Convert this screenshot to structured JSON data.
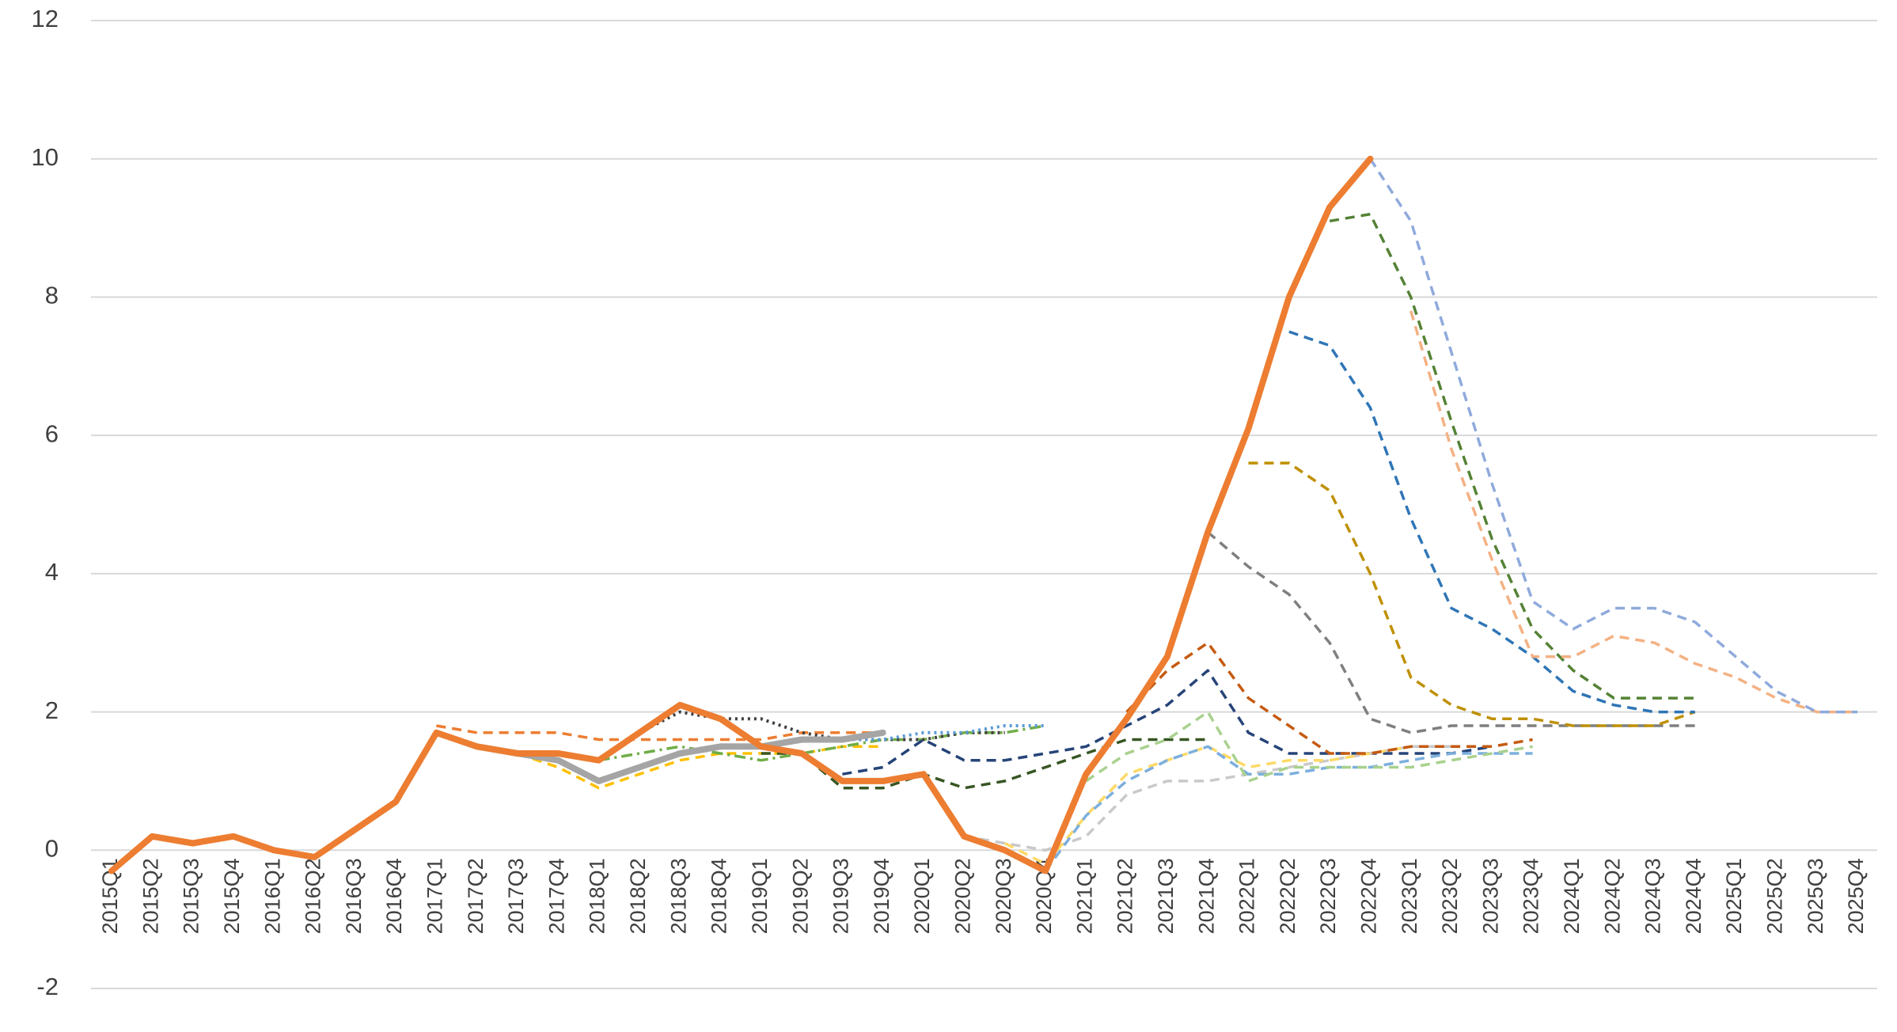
{
  "chart_data": {
    "type": "line",
    "categories": [
      "2015Q1",
      "2015Q2",
      "2015Q3",
      "2015Q4",
      "2016Q1",
      "2016Q2",
      "2016Q3",
      "2016Q4",
      "2017Q1",
      "2017Q2",
      "2017Q3",
      "2017Q4",
      "2018Q1",
      "2018Q2",
      "2018Q3",
      "2018Q4",
      "2019Q1",
      "2019Q2",
      "2019Q3",
      "2019Q4",
      "2020Q1",
      "2020Q2",
      "2020Q3",
      "2020Q4",
      "2021Q1",
      "2021Q2",
      "2021Q3",
      "2021Q4",
      "2022Q1",
      "2022Q2",
      "2022Q3",
      "2022Q4",
      "2023Q1",
      "2023Q2",
      "2023Q3",
      "2023Q4",
      "2024Q1",
      "2024Q2",
      "2024Q3",
      "2024Q4",
      "2025Q1",
      "2025Q2",
      "2025Q3",
      "2025Q4"
    ],
    "ylim": [
      -2,
      12
    ],
    "yticks": [
      -2,
      0,
      2,
      4,
      6,
      8,
      10,
      12
    ],
    "grid": true,
    "series": [
      {
        "color": "#ed7d31",
        "style": "dashed",
        "values": [
          null,
          null,
          null,
          null,
          null,
          null,
          null,
          null,
          1.8,
          1.7,
          1.7,
          1.7,
          1.6,
          1.6,
          1.6,
          1.6,
          1.6,
          1.7,
          1.7,
          1.7,
          null,
          null,
          null,
          null,
          null,
          null,
          null,
          null,
          null,
          null,
          null,
          null,
          null,
          null,
          null,
          null,
          null,
          null,
          null,
          null,
          null,
          null,
          null,
          null
        ]
      },
      {
        "color": "#ffc000",
        "style": "dashed",
        "values": [
          null,
          null,
          null,
          null,
          null,
          null,
          null,
          null,
          null,
          null,
          1.4,
          1.2,
          0.9,
          1.1,
          1.3,
          1.4,
          1.4,
          1.4,
          1.5,
          1.5,
          null,
          null,
          null,
          null,
          null,
          null,
          null,
          null,
          null,
          null,
          null,
          null,
          null,
          null,
          null,
          null,
          null,
          null,
          null,
          null,
          null,
          null,
          null,
          null
        ]
      },
      {
        "color": "#70ad47",
        "style": "dash-dot",
        "values": [
          null,
          null,
          null,
          null,
          null,
          null,
          null,
          null,
          null,
          null,
          null,
          null,
          1.3,
          1.4,
          1.5,
          1.4,
          1.3,
          1.4,
          1.5,
          1.6,
          1.6,
          1.7,
          1.7,
          1.8,
          null,
          null,
          null,
          null,
          null,
          null,
          null,
          null,
          null,
          null,
          null,
          null,
          null,
          null,
          null,
          null,
          null,
          null,
          null,
          null
        ]
      },
      {
        "color": "#404040",
        "style": "dotted",
        "values": [
          null,
          null,
          null,
          null,
          null,
          null,
          null,
          null,
          null,
          null,
          null,
          null,
          null,
          1.7,
          2.0,
          1.9,
          1.9,
          1.7,
          1.6,
          1.6,
          1.6,
          1.7,
          1.7,
          null,
          null,
          null,
          null,
          null,
          null,
          null,
          null,
          null,
          null,
          null,
          null,
          null,
          null,
          null,
          null,
          null,
          null,
          null,
          null,
          null
        ]
      },
      {
        "color": "#375623",
        "style": "dashed",
        "values": [
          null,
          null,
          null,
          null,
          null,
          null,
          null,
          null,
          null,
          null,
          null,
          null,
          null,
          null,
          null,
          null,
          1.4,
          1.4,
          0.9,
          0.9,
          1.1,
          0.9,
          1.0,
          1.2,
          1.4,
          1.6,
          1.6,
          1.6,
          null,
          null,
          null,
          null,
          null,
          null,
          null,
          null,
          null,
          null,
          null,
          null,
          null,
          null,
          null,
          null
        ]
      },
      {
        "color": "#5b9bd5",
        "style": "dotted",
        "values": [
          null,
          null,
          null,
          null,
          null,
          null,
          null,
          null,
          null,
          null,
          null,
          null,
          null,
          null,
          null,
          null,
          null,
          1.6,
          1.6,
          1.6,
          1.7,
          1.7,
          1.8,
          1.8,
          null,
          null,
          null,
          null,
          null,
          null,
          null,
          null,
          null,
          null,
          null,
          null,
          null,
          null,
          null,
          null,
          null,
          null,
          null,
          null
        ]
      },
      {
        "color": "#264478",
        "style": "dashed",
        "values": [
          null,
          null,
          null,
          null,
          null,
          null,
          null,
          null,
          null,
          null,
          null,
          null,
          null,
          null,
          null,
          null,
          null,
          null,
          1.1,
          1.2,
          1.6,
          1.3,
          1.3,
          1.4,
          1.5,
          1.8,
          2.1,
          2.6,
          1.7,
          1.4,
          1.4,
          1.4,
          1.4,
          1.4,
          1.5,
          null,
          null,
          null,
          null,
          null,
          null,
          null,
          null,
          null
        ]
      },
      {
        "color": "#c9c9c9",
        "style": "dashed",
        "values": [
          null,
          null,
          null,
          null,
          null,
          null,
          null,
          null,
          null,
          null,
          null,
          null,
          null,
          null,
          null,
          null,
          null,
          null,
          null,
          null,
          null,
          0.2,
          0.1,
          0.0,
          0.2,
          0.8,
          1.0,
          1.0,
          1.1,
          1.2,
          1.3,
          1.4,
          1.5,
          1.5,
          null,
          null,
          null,
          null,
          null,
          null,
          null,
          null,
          null,
          null
        ]
      },
      {
        "color": "#ffd966",
        "style": "dashed",
        "values": [
          null,
          null,
          null,
          null,
          null,
          null,
          null,
          null,
          null,
          null,
          null,
          null,
          null,
          null,
          null,
          null,
          null,
          null,
          null,
          null,
          null,
          null,
          0.1,
          -0.2,
          0.5,
          1.1,
          1.3,
          1.5,
          1.2,
          1.3,
          1.3,
          1.4,
          1.5,
          null,
          null,
          null,
          null,
          null,
          null,
          null,
          null,
          null,
          null,
          null
        ]
      },
      {
        "color": "#7cafdd",
        "style": "dashed",
        "values": [
          null,
          null,
          null,
          null,
          null,
          null,
          null,
          null,
          null,
          null,
          null,
          null,
          null,
          null,
          null,
          null,
          null,
          null,
          null,
          null,
          null,
          null,
          null,
          -0.3,
          0.5,
          1.0,
          1.3,
          1.5,
          1.1,
          1.1,
          1.2,
          1.2,
          1.3,
          1.4,
          1.4,
          1.4,
          null,
          null,
          null,
          null,
          null,
          null,
          null,
          null
        ]
      },
      {
        "color": "#a9d18e",
        "style": "dashed",
        "values": [
          null,
          null,
          null,
          null,
          null,
          null,
          null,
          null,
          null,
          null,
          null,
          null,
          null,
          null,
          null,
          null,
          null,
          null,
          null,
          null,
          null,
          null,
          null,
          null,
          1.0,
          1.4,
          1.6,
          2.0,
          1.0,
          1.2,
          1.2,
          1.2,
          1.2,
          1.3,
          1.4,
          1.5,
          null,
          null,
          null,
          null,
          null,
          null,
          null,
          null
        ]
      },
      {
        "color": "#c55a11",
        "style": "dashed",
        "values": [
          null,
          null,
          null,
          null,
          null,
          null,
          null,
          null,
          null,
          null,
          null,
          null,
          null,
          null,
          null,
          null,
          null,
          null,
          null,
          null,
          null,
          null,
          null,
          null,
          null,
          2.0,
          2.6,
          3.0,
          2.2,
          1.8,
          1.4,
          1.4,
          1.5,
          1.5,
          1.5,
          1.6,
          null,
          null,
          null,
          null,
          null,
          null,
          null,
          null
        ]
      },
      {
        "color": "#7f7f7f",
        "style": "dashed",
        "values": [
          null,
          null,
          null,
          null,
          null,
          null,
          null,
          null,
          null,
          null,
          null,
          null,
          null,
          null,
          null,
          null,
          null,
          null,
          null,
          null,
          null,
          null,
          null,
          null,
          null,
          null,
          null,
          4.6,
          4.1,
          3.7,
          3.0,
          1.9,
          1.7,
          1.8,
          1.8,
          1.8,
          1.8,
          1.8,
          1.8,
          1.8,
          null,
          null,
          null,
          null
        ]
      },
      {
        "color": "#bf9000",
        "style": "dashed",
        "values": [
          null,
          null,
          null,
          null,
          null,
          null,
          null,
          null,
          null,
          null,
          null,
          null,
          null,
          null,
          null,
          null,
          null,
          null,
          null,
          null,
          null,
          null,
          null,
          null,
          null,
          null,
          null,
          null,
          5.6,
          5.6,
          5.2,
          4.0,
          2.5,
          2.1,
          1.9,
          1.9,
          1.8,
          1.8,
          1.8,
          2.0,
          null,
          null,
          null,
          null
        ]
      },
      {
        "color": "#2e75b6",
        "style": "dashed",
        "values": [
          null,
          null,
          null,
          null,
          null,
          null,
          null,
          null,
          null,
          null,
          null,
          null,
          null,
          null,
          null,
          null,
          null,
          null,
          null,
          null,
          null,
          null,
          null,
          null,
          null,
          null,
          null,
          null,
          null,
          7.5,
          7.3,
          6.4,
          4.8,
          3.5,
          3.2,
          2.8,
          2.3,
          2.1,
          2.0,
          2.0,
          null,
          null,
          null,
          null
        ]
      },
      {
        "color": "#548235",
        "style": "dashed",
        "values": [
          null,
          null,
          null,
          null,
          null,
          null,
          null,
          null,
          null,
          null,
          null,
          null,
          null,
          null,
          null,
          null,
          null,
          null,
          null,
          null,
          null,
          null,
          null,
          null,
          null,
          null,
          null,
          null,
          null,
          null,
          9.1,
          9.2,
          8.0,
          6.2,
          4.5,
          3.2,
          2.6,
          2.2,
          2.2,
          2.2,
          null,
          null,
          null,
          null
        ]
      },
      {
        "color": "#f4b183",
        "style": "dashed",
        "values": [
          null,
          null,
          null,
          null,
          null,
          null,
          null,
          null,
          null,
          null,
          null,
          null,
          null,
          null,
          null,
          null,
          null,
          null,
          null,
          null,
          null,
          null,
          null,
          null,
          null,
          null,
          null,
          null,
          null,
          null,
          null,
          null,
          7.8,
          5.8,
          4.2,
          2.8,
          2.8,
          3.1,
          3.0,
          2.7,
          2.5,
          2.2,
          2.0,
          2.0
        ]
      },
      {
        "color": "#8faadc",
        "style": "dashed",
        "values": [
          null,
          null,
          null,
          null,
          null,
          null,
          null,
          null,
          null,
          null,
          null,
          null,
          null,
          null,
          null,
          null,
          null,
          null,
          null,
          null,
          null,
          null,
          null,
          null,
          null,
          null,
          null,
          null,
          null,
          null,
          null,
          10.0,
          9.1,
          7.2,
          5.3,
          3.6,
          3.2,
          3.5,
          3.5,
          3.3,
          2.8,
          2.3,
          2.0,
          2.0
        ]
      },
      {
        "color": "#a5a5a5",
        "style": "solid-thick",
        "values": [
          null,
          null,
          null,
          null,
          null,
          null,
          null,
          null,
          null,
          1.5,
          1.4,
          1.3,
          1.0,
          1.2,
          1.4,
          1.5,
          1.5,
          1.6,
          1.6,
          1.7,
          null,
          null,
          null,
          null,
          null,
          null,
          null,
          null,
          null,
          null,
          null,
          null,
          null,
          null,
          null,
          null,
          null,
          null,
          null,
          null,
          null,
          null,
          null,
          null
        ]
      },
      {
        "color": "#ed7d31",
        "style": "solid-thick",
        "values": [
          -0.3,
          0.2,
          0.1,
          0.2,
          0.0,
          -0.1,
          0.3,
          0.7,
          1.7,
          1.5,
          1.4,
          1.4,
          1.3,
          1.7,
          2.1,
          1.9,
          1.5,
          1.4,
          1.0,
          1.0,
          1.1,
          0.2,
          0.0,
          -0.3,
          1.1,
          1.9,
          2.8,
          4.6,
          6.1,
          8.0,
          9.3,
          10.0,
          null,
          null,
          null,
          null,
          null,
          null,
          null,
          null,
          null,
          null,
          null,
          null
        ]
      }
    ]
  }
}
